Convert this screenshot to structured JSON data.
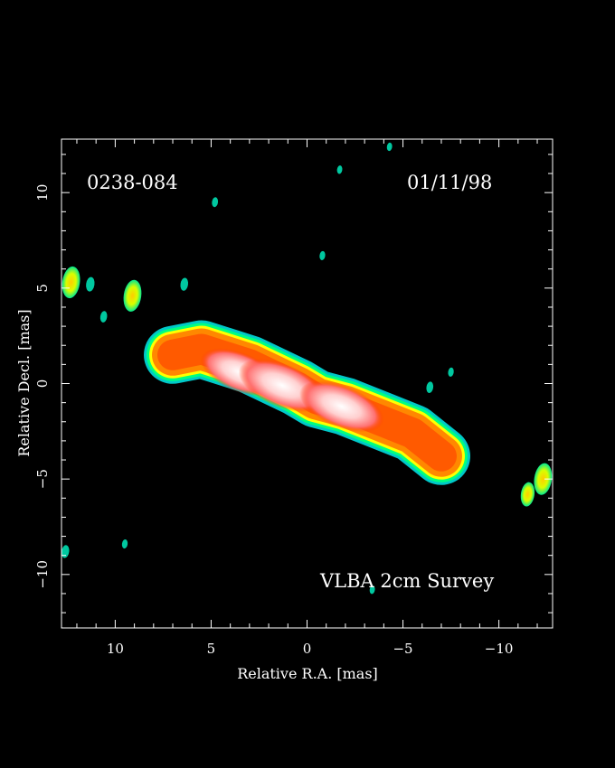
{
  "chart_data": {
    "type": "heatmap",
    "title": "",
    "source_label": "0238-084",
    "date_label": "01/11/98",
    "survey_label": "VLBA 2cm Survey",
    "xlabel": "Relative R.A. [mas]",
    "ylabel": "Relative Decl. [mas]",
    "xlim": [
      12.8,
      -12.8
    ],
    "ylim": [
      -12.8,
      12.8
    ],
    "x_major_ticks": [
      10,
      5,
      0,
      -5,
      -10
    ],
    "x_tick_labels": [
      "10",
      "5",
      "0",
      "−5",
      "−10"
    ],
    "y_major_ticks": [
      10,
      5,
      0,
      -5,
      -10
    ],
    "y_tick_labels": [
      "10",
      "5",
      "0",
      "−5",
      "−10"
    ],
    "minor_tick_step": 1,
    "grid": false,
    "background": "#000000",
    "colormap": [
      "#00c8c8",
      "#00ff80",
      "#ffff00",
      "#ff8800",
      "#ff4400",
      "#ff0000",
      "#ffb0b0",
      "#ffffff"
    ],
    "emission": {
      "jet_segments": [
        {
          "x": 7,
          "y": 1.5
        },
        {
          "x": 5.5,
          "y": 1.8
        },
        {
          "x": 3,
          "y": 1.0
        },
        {
          "x": 0.5,
          "y": -0.2
        },
        {
          "x": -0.5,
          "y": -0.8
        },
        {
          "x": -2,
          "y": -1.2
        },
        {
          "x": -4,
          "y": -2.0
        },
        {
          "x": -5.5,
          "y": -2.6
        },
        {
          "x": -7,
          "y": -3.8
        }
      ],
      "peaks": [
        {
          "x": 3.5,
          "y": 0.6,
          "level": 0.85
        },
        {
          "x": 1.3,
          "y": -0.1,
          "level": 1.0
        },
        {
          "x": -1.8,
          "y": -1.2,
          "level": 0.95
        }
      ],
      "knots": [
        {
          "x": 12.3,
          "y": 5.3,
          "level": 0.35
        },
        {
          "x": 11.3,
          "y": 5.2,
          "level": 0.12
        },
        {
          "x": 9.1,
          "y": 4.6,
          "level": 0.35
        },
        {
          "x": 10.6,
          "y": 3.5,
          "level": 0.08
        },
        {
          "x": 6.4,
          "y": 5.2,
          "level": 0.1
        },
        {
          "x": 4.8,
          "y": 9.5,
          "level": 0.06
        },
        {
          "x": -0.8,
          "y": 6.7,
          "level": 0.05
        },
        {
          "x": -1.7,
          "y": 11.2,
          "level": 0.04
        },
        {
          "x": -4.3,
          "y": 12.4,
          "level": 0.04
        },
        {
          "x": -6.4,
          "y": -0.2,
          "level": 0.08
        },
        {
          "x": -7.5,
          "y": 0.6,
          "level": 0.05
        },
        {
          "x": -11.5,
          "y": -5.8,
          "level": 0.25
        },
        {
          "x": -12.3,
          "y": -5.0,
          "level": 0.35
        },
        {
          "x": 12.6,
          "y": -8.8,
          "level": 0.1
        },
        {
          "x": 9.5,
          "y": -8.4,
          "level": 0.05
        },
        {
          "x": -3.4,
          "y": -10.8,
          "level": 0.04
        }
      ]
    }
  }
}
